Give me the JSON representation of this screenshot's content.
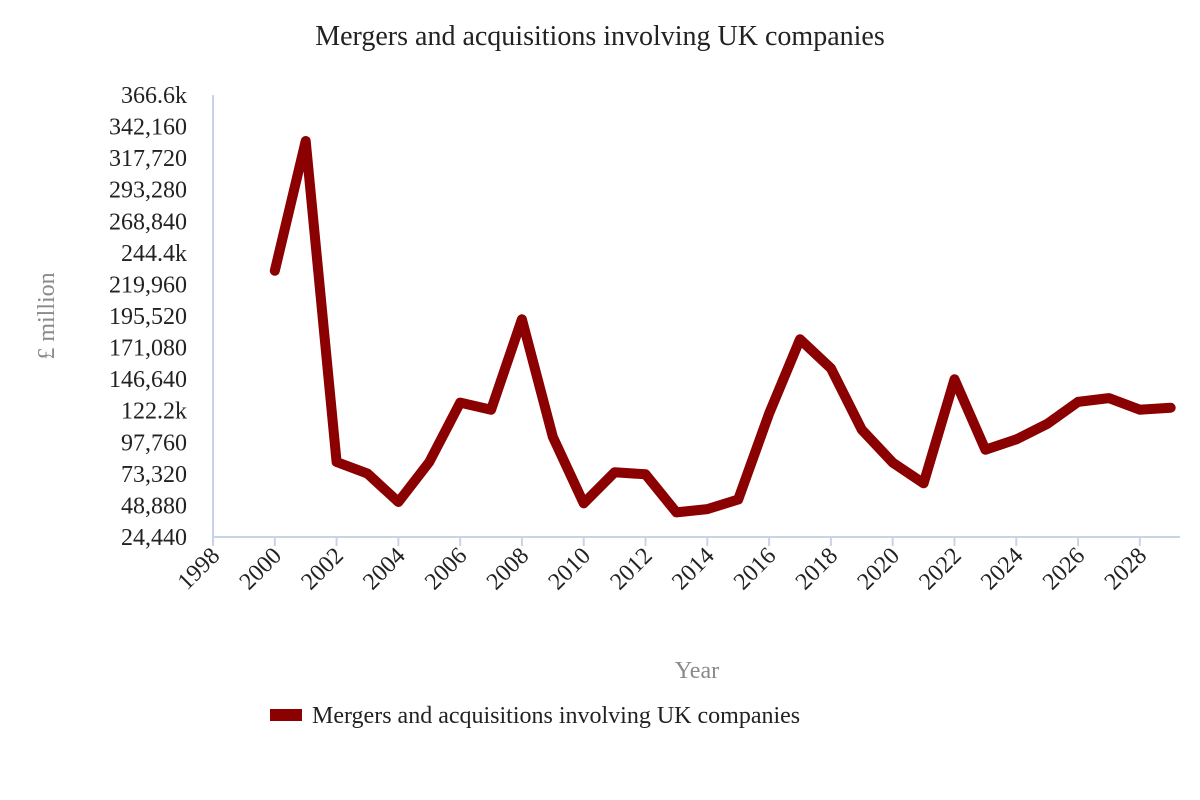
{
  "chart_data": {
    "type": "line",
    "title": "Mergers and acquisitions involving UK companies",
    "xlabel": "Year",
    "ylabel": "£ million",
    "x": [
      2000,
      2001,
      2002,
      2003,
      2004,
      2005,
      2006,
      2007,
      2008,
      2009,
      2010,
      2011,
      2012,
      2013,
      2014,
      2015,
      2016,
      2017,
      2018,
      2019,
      2020,
      2021,
      2022,
      2023,
      2024,
      2025,
      2026,
      2027,
      2028,
      2029
    ],
    "series": [
      {
        "name": "Mergers and acquisitions involving UK companies",
        "color": "#8b0000",
        "values": [
          230500,
          331000,
          82500,
          73500,
          51500,
          82500,
          128500,
          123000,
          193000,
          102000,
          50500,
          74500,
          73000,
          43500,
          46000,
          53500,
          120000,
          177500,
          155000,
          107500,
          82000,
          66000,
          146500,
          92000,
          100000,
          112000,
          129000,
          132000,
          123000,
          124500
        ]
      }
    ],
    "x_ticks": [
      "1998",
      "2000",
      "2002",
      "2004",
      "2006",
      "2008",
      "2010",
      "2012",
      "2014",
      "2016",
      "2018",
      "2020",
      "2022",
      "2024",
      "2026",
      "2028"
    ],
    "y_ticks": [
      "24,440",
      "48,880",
      "73,320",
      "97,760",
      "122.2k",
      "146,640",
      "171,080",
      "195,520",
      "219,960",
      "244.4k",
      "268,840",
      "293,280",
      "317,720",
      "342,160",
      "366.6k"
    ],
    "xlim": [
      1998,
      2029.3
    ],
    "ylim": [
      24440,
      366600
    ],
    "grid": false,
    "legend_position": "bottom-left"
  }
}
